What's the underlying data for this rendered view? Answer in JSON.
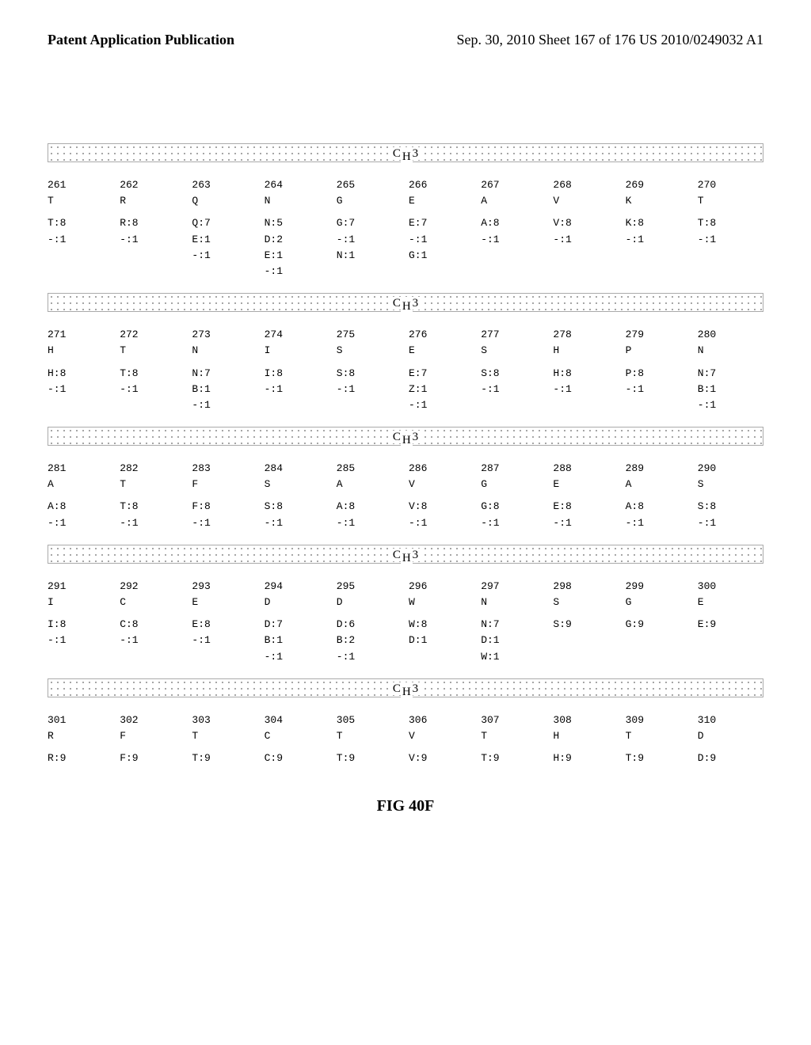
{
  "header": {
    "left": "Patent Application Publication",
    "right": "Sep. 30, 2010  Sheet 167 of 176  US 2010/0249032 A1"
  },
  "section_label": "C",
  "section_sub": "H",
  "section_suffix": "3",
  "figure_label": "FIG 40F",
  "blocks": [
    {
      "positions": [
        "261",
        "262",
        "263",
        "264",
        "265",
        "266",
        "267",
        "268",
        "269",
        "270"
      ],
      "residues": [
        "T",
        "R",
        "Q",
        "N",
        "G",
        "E",
        "A",
        "V",
        "K",
        "T"
      ],
      "variants": [
        [
          "T:8",
          "R:8",
          "Q:7",
          "N:5",
          "G:7",
          "E:7",
          "A:8",
          "V:8",
          "K:8",
          "T:8"
        ],
        [
          "-:1",
          "-:1",
          "E:1",
          "D:2",
          "-:1",
          "-:1",
          "-:1",
          "-:1",
          "-:1",
          "-:1"
        ],
        [
          "",
          "",
          "-:1",
          "E:1",
          "N:1",
          "G:1",
          "",
          "",
          "",
          ""
        ],
        [
          "",
          "",
          "",
          "-:1",
          "",
          "",
          "",
          "",
          "",
          ""
        ]
      ]
    },
    {
      "positions": [
        "271",
        "272",
        "273",
        "274",
        "275",
        "276",
        "277",
        "278",
        "279",
        "280"
      ],
      "residues": [
        "H",
        "T",
        "N",
        "I",
        "S",
        "E",
        "S",
        "H",
        "P",
        "N"
      ],
      "variants": [
        [
          "H:8",
          "T:8",
          "N:7",
          "I:8",
          "S:8",
          "E:7",
          "S:8",
          "H:8",
          "P:8",
          "N:7"
        ],
        [
          "-:1",
          "-:1",
          "B:1",
          "-:1",
          "-:1",
          "Z:1",
          "-:1",
          "-:1",
          "-:1",
          "B:1"
        ],
        [
          "",
          "",
          "-:1",
          "",
          "",
          "-:1",
          "",
          "",
          "",
          "-:1"
        ]
      ]
    },
    {
      "positions": [
        "281",
        "282",
        "283",
        "284",
        "285",
        "286",
        "287",
        "288",
        "289",
        "290"
      ],
      "residues": [
        "A",
        "T",
        "F",
        "S",
        "A",
        "V",
        "G",
        "E",
        "A",
        "S"
      ],
      "variants": [
        [
          "A:8",
          "T:8",
          "F:8",
          "S:8",
          "A:8",
          "V:8",
          "G:8",
          "E:8",
          "A:8",
          "S:8"
        ],
        [
          "-:1",
          "-:1",
          "-:1",
          "-:1",
          "-:1",
          "-:1",
          "-:1",
          "-:1",
          "-:1",
          "-:1"
        ]
      ]
    },
    {
      "positions": [
        "291",
        "292",
        "293",
        "294",
        "295",
        "296",
        "297",
        "298",
        "299",
        "300"
      ],
      "residues": [
        "I",
        "C",
        "E",
        "D",
        "D",
        "W",
        "N",
        "S",
        "G",
        "E"
      ],
      "variants": [
        [
          "I:8",
          "C:8",
          "E:8",
          "D:7",
          "D:6",
          "W:8",
          "N:7",
          "S:9",
          "G:9",
          "E:9"
        ],
        [
          "-:1",
          "-:1",
          "-:1",
          "B:1",
          "B:2",
          "D:1",
          "D:1",
          "",
          "",
          ""
        ],
        [
          "",
          "",
          "",
          "-:1",
          "-:1",
          "",
          "W:1",
          "",
          "",
          ""
        ]
      ]
    },
    {
      "positions": [
        "301",
        "302",
        "303",
        "304",
        "305",
        "306",
        "307",
        "308",
        "309",
        "310"
      ],
      "residues": [
        "R",
        "F",
        "T",
        "C",
        "T",
        "V",
        "T",
        "H",
        "T",
        "D"
      ],
      "variants": [
        [
          "R:9",
          "F:9",
          "T:9",
          "C:9",
          "T:9",
          "V:9",
          "T:9",
          "H:9",
          "T:9",
          "D:9"
        ]
      ]
    }
  ]
}
